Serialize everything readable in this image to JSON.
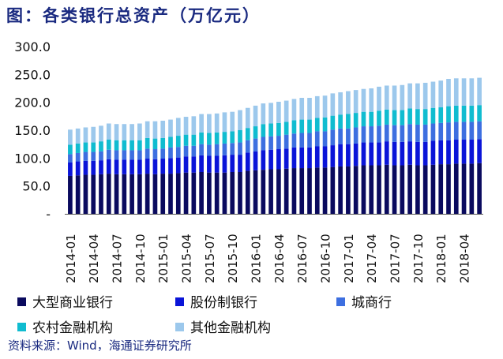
{
  "title": "图：各类银行总资产（万亿元）",
  "source": "资料来源：Wind，海通证券研究所",
  "chart_data": {
    "type": "bar",
    "stacked": true,
    "yticks": [
      "300.0",
      "250.0",
      "200.0",
      "150.0",
      "100.0",
      "50.0",
      "-"
    ],
    "ylim": [
      0,
      300
    ],
    "xtick_labels": [
      "2014-01",
      "2014-04",
      "2014-07",
      "2014-10",
      "2015-01",
      "2015-04",
      "2015-07",
      "2015-10",
      "2016-01",
      "2016-04",
      "2016-07",
      "2016-10",
      "2017-01",
      "2017-04",
      "2017-07",
      "2017-10",
      "2018-01",
      "2018-04"
    ],
    "categories": [
      "2014-01",
      "2014-02",
      "2014-03",
      "2014-04",
      "2014-05",
      "2014-06",
      "2014-07",
      "2014-08",
      "2014-09",
      "2014-10",
      "2014-11",
      "2014-12",
      "2015-01",
      "2015-02",
      "2015-03",
      "2015-04",
      "2015-05",
      "2015-06",
      "2015-07",
      "2015-08",
      "2015-09",
      "2015-10",
      "2015-11",
      "2015-12",
      "2016-01",
      "2016-02",
      "2016-03",
      "2016-04",
      "2016-05",
      "2016-06",
      "2016-07",
      "2016-08",
      "2016-09",
      "2016-10",
      "2016-11",
      "2016-12",
      "2017-01",
      "2017-02",
      "2017-03",
      "2017-04",
      "2017-05",
      "2017-06",
      "2017-07",
      "2017-08",
      "2017-09",
      "2017-10",
      "2017-11",
      "2017-12",
      "2018-01",
      "2018-02",
      "2018-03",
      "2018-04",
      "2018-05",
      "2018-06"
    ],
    "series": [
      {
        "name": "大型商业银行",
        "color": "#0a0a5e",
        "values": [
          68,
          69,
          70,
          70,
          71,
          72,
          71,
          71,
          71,
          71,
          72,
          71,
          72,
          72,
          73,
          74,
          74,
          75,
          74,
          74,
          74,
          75,
          75,
          77,
          78,
          79,
          80,
          80,
          81,
          82,
          82,
          82,
          83,
          83,
          84,
          85,
          85,
          86,
          87,
          87,
          87,
          88,
          87,
          87,
          88,
          87,
          87,
          88,
          89,
          89,
          90,
          90,
          90,
          91
        ]
      },
      {
        "name": "股份制银行",
        "color": "#0a14d8",
        "values": [
          24,
          25,
          25,
          25,
          25,
          26,
          26,
          26,
          26,
          26,
          27,
          27,
          27,
          28,
          28,
          29,
          29,
          30,
          30,
          30,
          31,
          31,
          31,
          33,
          34,
          35,
          35,
          36,
          36,
          37,
          37,
          37,
          38,
          38,
          39,
          40,
          40,
          40,
          41,
          41,
          41,
          42,
          42,
          42,
          42,
          42,
          42,
          43,
          43,
          43,
          43,
          43,
          43,
          43
        ]
      },
      {
        "name": "城商行",
        "color": "#3d6fe0",
        "values": [
          15,
          15,
          16,
          16,
          16,
          17,
          17,
          17,
          17,
          17,
          18,
          18,
          18,
          19,
          19,
          19,
          19,
          20,
          20,
          21,
          21,
          21,
          22,
          22,
          23,
          24,
          24,
          24,
          25,
          25,
          26,
          26,
          27,
          27,
          28,
          28,
          28,
          29,
          29,
          29,
          30,
          30,
          30,
          30,
          31,
          31,
          31,
          31,
          31,
          32,
          32,
          32,
          32,
          32
        ]
      },
      {
        "name": "农村金融机构",
        "color": "#10bcd0",
        "values": [
          17,
          17,
          17,
          17,
          18,
          18,
          18,
          18,
          18,
          18,
          19,
          19,
          19,
          19,
          20,
          20,
          20,
          21,
          21,
          21,
          21,
          21,
          22,
          22,
          22,
          23,
          23,
          23,
          23,
          24,
          24,
          24,
          24,
          25,
          25,
          25,
          26,
          26,
          26,
          26,
          27,
          27,
          27,
          27,
          28,
          28,
          28,
          28,
          28,
          29,
          29,
          29,
          29,
          29
        ]
      },
      {
        "name": "其他金融机构",
        "color": "#9cc8ec",
        "values": [
          27,
          27,
          27,
          28,
          28,
          29,
          29,
          29,
          29,
          30,
          30,
          31,
          31,
          31,
          32,
          32,
          33,
          33,
          34,
          34,
          35,
          35,
          36,
          36,
          37,
          37,
          37,
          38,
          38,
          38,
          39,
          39,
          39,
          39,
          40,
          40,
          41,
          41,
          41,
          42,
          43,
          43,
          44,
          45,
          45,
          46,
          47,
          47,
          48,
          49,
          49,
          49,
          49,
          49
        ]
      }
    ]
  }
}
